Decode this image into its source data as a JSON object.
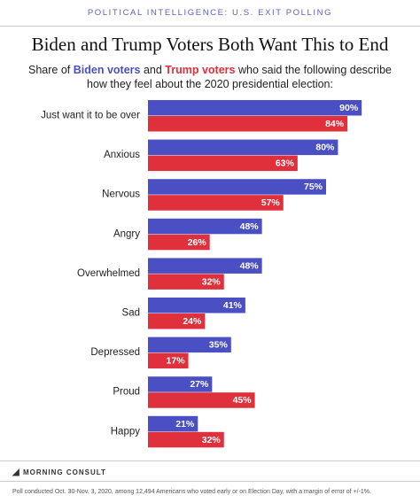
{
  "header": "POLITICAL INTELLIGENCE: U.S. EXIT POLLING",
  "chart_data": {
    "type": "grouped-hbar",
    "title": "Biden and Trump Voters Both Want This to End",
    "subtitle": {
      "start": "Share of",
      "middle": "and",
      "end_line1": "who said the following describe",
      "line2": "how they feel about the 2020 presidential election:"
    },
    "categories": [
      "Just want it to be over",
      "Anxious",
      "Nervous",
      "Angry",
      "Overwhelmed",
      "Sad",
      "Depressed",
      "Proud",
      "Happy"
    ],
    "series": [
      {
        "name": "Biden voters",
        "color": "#4a4fc4",
        "values": [
          90,
          80,
          75,
          48,
          48,
          41,
          35,
          27,
          21
        ],
        "value_labels": [
          "90%",
          "80%",
          "75%",
          "48%",
          "48%",
          "41%",
          "35%",
          "27%",
          "21%"
        ]
      },
      {
        "name": "Trump voters",
        "color": "#e0303c",
        "values": [
          84,
          63,
          57,
          26,
          32,
          24,
          17,
          45,
          32
        ],
        "value_labels": [
          "84%",
          "63%",
          "57%",
          "26%",
          "32%",
          "24%",
          "17%",
          "45%",
          "32%"
        ]
      }
    ]
  },
  "logo": "MORNING CONSULT",
  "note": "Poll conducted Oct. 30-Nov. 3, 2020, among 12,494 Americans who voted early or on Election Day, with a margin of error of +/-1%."
}
